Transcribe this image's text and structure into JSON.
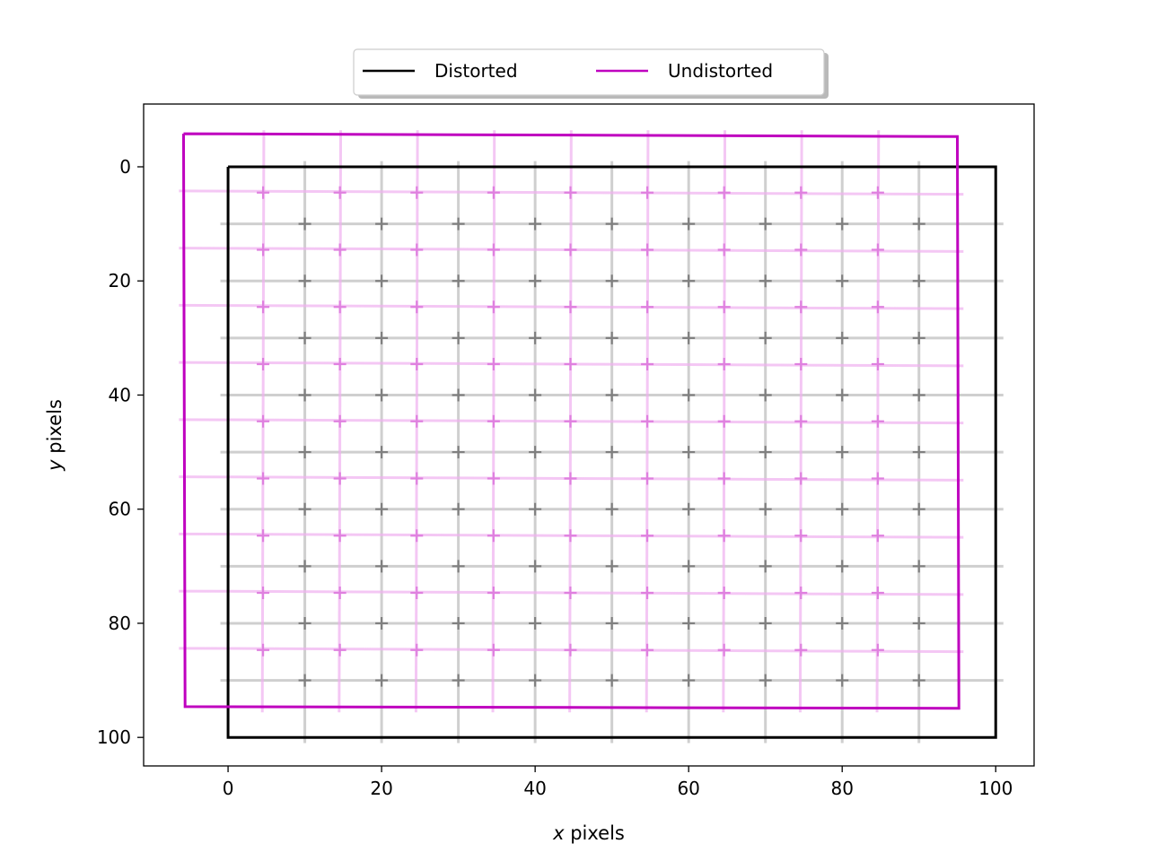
{
  "chart_data": {
    "type": "line",
    "xlabel": {
      "var": "x",
      "rest": " pixels"
    },
    "ylabel": {
      "var": "y",
      "rest": " pixels"
    },
    "xlim": [
      -11,
      105
    ],
    "ylim": [
      105,
      -11
    ],
    "y_inverted": true,
    "xticks": [
      0,
      20,
      40,
      60,
      80,
      100
    ],
    "yticks": [
      0,
      20,
      40,
      60,
      80,
      100
    ],
    "legend": {
      "placement": "top-center, outside axes",
      "entries": [
        {
          "label": "Distorted",
          "color": "#000000"
        },
        {
          "label": "Undistorted",
          "color": "#bf00bf"
        }
      ]
    },
    "series": [
      {
        "name": "Distorted",
        "color": "#000000",
        "boundary": [
          [
            0,
            0
          ],
          [
            100,
            0
          ],
          [
            100,
            100
          ],
          [
            0,
            100
          ],
          [
            0,
            0
          ]
        ],
        "grid_points": {
          "x": [
            10,
            20,
            30,
            40,
            50,
            60,
            70,
            80,
            90
          ],
          "y": [
            10,
            20,
            30,
            40,
            50,
            60,
            70,
            80,
            90
          ]
        },
        "gridline_color": "#b0b0b0",
        "marker_color": "#808080"
      },
      {
        "name": "Undistorted",
        "color": "#bf00bf",
        "boundary": [
          [
            -5.8,
            -5.8
          ],
          [
            95,
            -5.3
          ],
          [
            95.2,
            94.9
          ],
          [
            -5.6,
            94.6
          ],
          [
            -5.8,
            -5.8
          ]
        ],
        "grid_points_desc": "9x9 points shifted by about (-5.4, -5.4) from the distorted grid",
        "gridline_color": "#f0b0f0",
        "marker_color": "#df80df"
      }
    ]
  }
}
